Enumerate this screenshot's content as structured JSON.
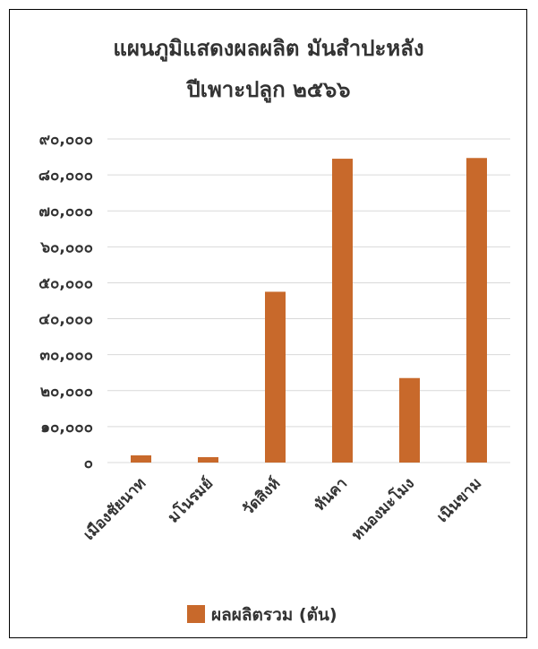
{
  "chart_data": {
    "type": "bar",
    "title_line1": "แผนภูมิแสดงผลผลิต มันสำปะหลัง",
    "title_line2": "ปีเพาะปลูก ๒๕๖๖",
    "categories": [
      "เมืองชัยนาท",
      "มโนรมย์",
      "วัดสิงห์",
      "หันคา",
      "หนองมะโมง",
      "เนินขาม"
    ],
    "series": [
      {
        "name": "ผลผลิตรวม (ตัน)",
        "color": "#C8692B",
        "values": [
          2000,
          1500,
          47500,
          84500,
          23500,
          84700
        ]
      }
    ],
    "ylim": [
      0,
      90000
    ],
    "yticks": [
      0,
      10000,
      20000,
      30000,
      40000,
      50000,
      60000,
      70000,
      80000,
      90000
    ],
    "ytick_labels": [
      "๐",
      "๑๐,๐๐๐",
      "๒๐,๐๐๐",
      "๓๐,๐๐๐",
      "๔๐,๐๐๐",
      "๕๐,๐๐๐",
      "๖๐,๐๐๐",
      "๗๐,๐๐๐",
      "๘๐,๐๐๐",
      "๙๐,๐๐๐"
    ],
    "grid": true,
    "legend_position": "bottom",
    "gridline_color": "#D9D9D9",
    "text_color": "#333333"
  }
}
